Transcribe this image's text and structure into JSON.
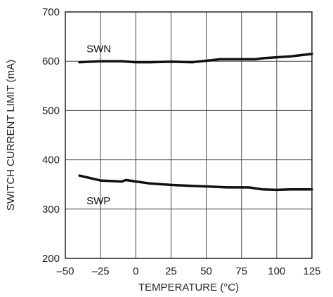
{
  "chart_data": {
    "type": "line",
    "xlabel": "TEMPERATURE (°C)",
    "ylabel": "SWITCH CURRENT LIMIT (mA)",
    "xlim": [
      -50,
      125
    ],
    "ylim": [
      200,
      700
    ],
    "x_ticks": [
      -50,
      -25,
      0,
      25,
      50,
      75,
      100,
      125
    ],
    "x_tick_labels": [
      "–50",
      "–25",
      "0",
      "25",
      "50",
      "75",
      "100",
      "125"
    ],
    "y_ticks": [
      200,
      300,
      400,
      500,
      600,
      700
    ],
    "y_tick_labels": [
      "200",
      "300",
      "400",
      "500",
      "600",
      "700"
    ],
    "grid": true,
    "legend": "none",
    "series": [
      {
        "name": "SWN",
        "color": "#111111",
        "x": [
          -40,
          -25,
          -10,
          0,
          10,
          25,
          40,
          50,
          60,
          75,
          85,
          90,
          100,
          110,
          125
        ],
        "y": [
          598,
          600,
          600,
          598,
          598,
          599,
          598,
          601,
          604,
          604,
          604,
          606,
          608,
          610,
          615
        ]
      },
      {
        "name": "SWP",
        "color": "#111111",
        "x": [
          -40,
          -25,
          -10,
          -7,
          0,
          10,
          25,
          40,
          50,
          65,
          80,
          90,
          100,
          110,
          125
        ],
        "y": [
          368,
          358,
          356,
          359,
          356,
          352,
          349,
          347,
          346,
          344,
          344,
          340,
          339,
          340,
          340
        ]
      }
    ],
    "annotations": [
      {
        "text": "SWN",
        "x": -35,
        "y": 618
      },
      {
        "text": "SWP",
        "x": -35,
        "y": 310
      }
    ]
  }
}
